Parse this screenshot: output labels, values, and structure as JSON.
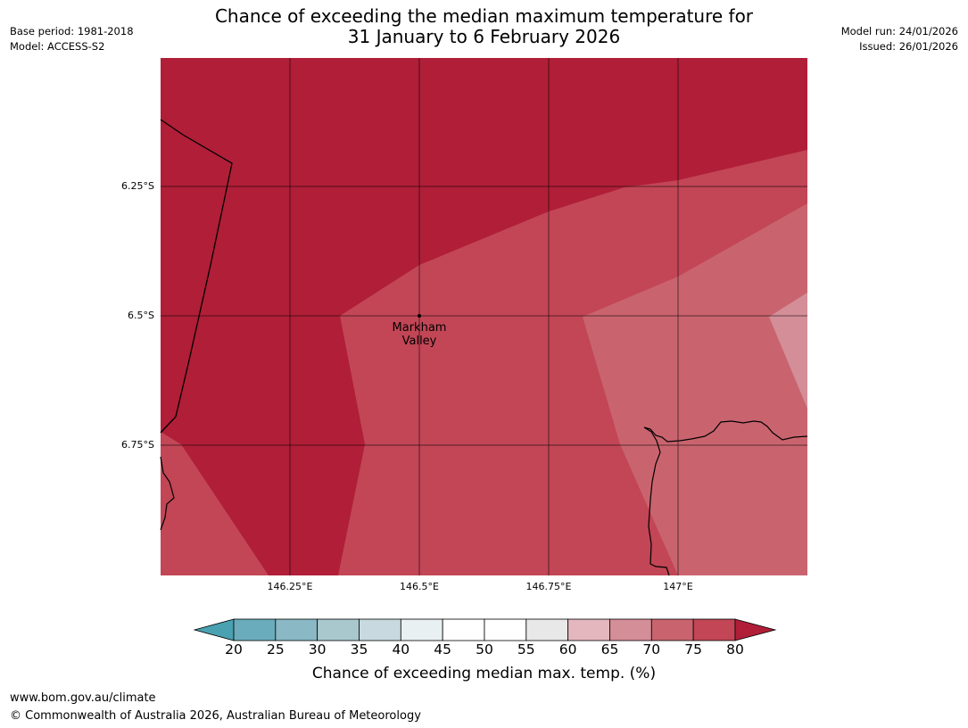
{
  "title_line1": "Chance of exceeding the median maximum temperature for",
  "title_line2": "31 January to 6 February 2026",
  "meta_left": [
    "Base period: 1981-2018",
    "Model: ACCESS-S2"
  ],
  "meta_right": [
    "Model run: 24/01/2026",
    "Issued: 26/01/2026"
  ],
  "lat_ticks": [
    "6.25°S",
    "6.5°S",
    "6.75°S"
  ],
  "lon_ticks": [
    "146.25°E",
    "146.5°E",
    "146.75°E",
    "147°E"
  ],
  "place_label_line1": "Markham",
  "place_label_line2": "Valley",
  "colorbar": {
    "title": "Chance of exceeding median max. temp. (%)",
    "ticks": [
      "20",
      "25",
      "30",
      "35",
      "40",
      "45",
      "50",
      "55",
      "60",
      "65",
      "70",
      "75",
      "80"
    ],
    "colors": [
      "#4aa1b1",
      "#6aacbb",
      "#8ab8c4",
      "#a8c8ce",
      "#c8dadf",
      "#e9f0f2",
      "#ffffff",
      "#ffffff",
      "#e8e8e8",
      "#e3b7bd",
      "#d48e98",
      "#c9646f",
      "#c24656",
      "#b01e38"
    ]
  },
  "footer_line1": "www.bom.gov.au/climate",
  "footer_line2": "© Commonwealth of Australia 2026, Australian Bureau of Meteorology"
}
